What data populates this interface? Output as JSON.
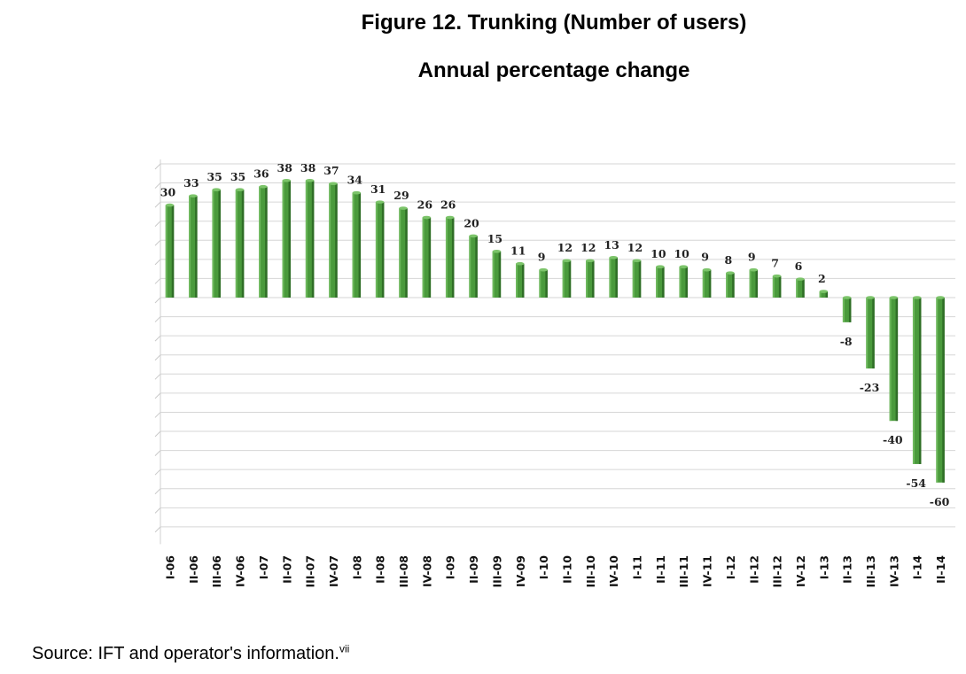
{
  "source": {
    "text": "Source: IFT and operator's information.",
    "note": "vii"
  },
  "chart_data": {
    "type": "bar",
    "title": "Figure 12. Trunking (Number of users)",
    "subtitle": "Annual percentage change",
    "categories": [
      "I-06",
      "II-06",
      "III-06",
      "IV-06",
      "I-07",
      "II-07",
      "III-07",
      "IV-07",
      "I-08",
      "II-08",
      "III-08",
      "IV-08",
      "I-09",
      "II-09",
      "III-09",
      "IV-09",
      "I-10",
      "II-10",
      "III-10",
      "IV-10",
      "I-11",
      "II-11",
      "III-11",
      "IV-11",
      "I-12",
      "II-12",
      "III-12",
      "IV-12",
      "I-13",
      "II-13",
      "III-13",
      "IV-13",
      "I-14",
      "II-14"
    ],
    "values": [
      30,
      33,
      35,
      35,
      36,
      38,
      38,
      37,
      34,
      31,
      29,
      26,
      26,
      20,
      15,
      11,
      9,
      12,
      12,
      13,
      12,
      10,
      10,
      9,
      8,
      9,
      7,
      6,
      2,
      -8,
      -23,
      -40,
      -54,
      -60
    ],
    "ylim": [
      -80,
      45
    ],
    "grid": true,
    "bar_color": "#4a9a3c",
    "bar_dark": "#2f6e26",
    "bar_light": "#7cc46a"
  }
}
